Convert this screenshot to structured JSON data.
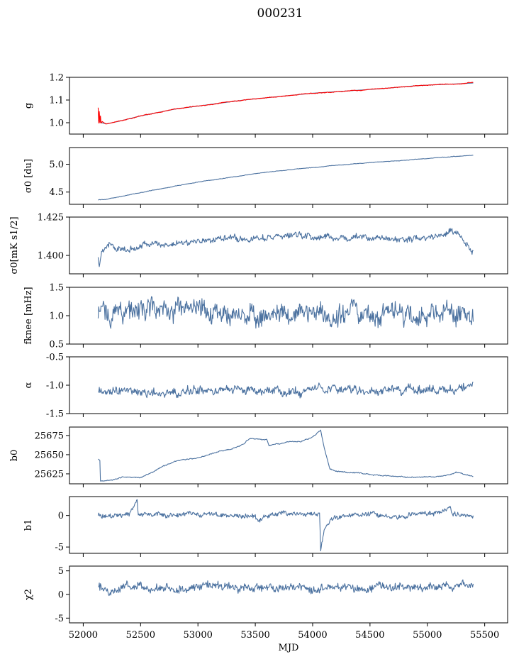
{
  "figure_title": "000231",
  "colors": {
    "series": "#4c72a0",
    "model": "#ff0000"
  },
  "chart_data": [
    {
      "type": "line",
      "ylabel": "g",
      "ylim": [
        0.95,
        1.2
      ],
      "yticks": [
        "1.0",
        "1.1",
        "1.2"
      ],
      "ytick_values": [
        1.0,
        1.1,
        1.2
      ],
      "series": [
        {
          "color": "#4c72a0",
          "points": [
            [
              52130,
              1.01
            ],
            [
              52160,
              1.0
            ],
            [
              52200,
              0.995
            ],
            [
              52300,
              1.005
            ],
            [
              52500,
              1.03
            ],
            [
              52800,
              1.06
            ],
            [
              53100,
              1.08
            ],
            [
              53400,
              1.1
            ],
            [
              53700,
              1.115
            ],
            [
              54000,
              1.13
            ],
            [
              54300,
              1.14
            ],
            [
              54600,
              1.15
            ],
            [
              54900,
              1.163
            ],
            [
              55100,
              1.168
            ],
            [
              55300,
              1.172
            ],
            [
              55400,
              1.175
            ]
          ]
        },
        {
          "color": "#ff0000",
          "points": [
            [
              52130,
              1.065
            ],
            [
              52135,
              1.0
            ],
            [
              52140,
              1.05
            ],
            [
              52145,
              1.0
            ],
            [
              52150,
              1.03
            ],
            [
              52155,
              1.0
            ],
            [
              52165,
              1.005
            ],
            [
              52200,
              0.995
            ],
            [
              52300,
              1.005
            ],
            [
              52500,
              1.03
            ],
            [
              52800,
              1.06
            ],
            [
              53100,
              1.08
            ],
            [
              53400,
              1.1
            ],
            [
              53700,
              1.115
            ],
            [
              54000,
              1.13
            ],
            [
              54300,
              1.14
            ],
            [
              54600,
              1.15
            ],
            [
              54900,
              1.163
            ],
            [
              55100,
              1.168
            ],
            [
              55300,
              1.172
            ],
            [
              55400,
              1.178
            ]
          ]
        }
      ]
    },
    {
      "type": "line",
      "ylabel": "σ0 [du]",
      "ylim": [
        4.28,
        5.3
      ],
      "yticks": [
        "4.5",
        "5.0"
      ],
      "ytick_values": [
        4.5,
        5.0
      ],
      "series": [
        {
          "color": "#4c72a0",
          "points": [
            [
              52130,
              4.36
            ],
            [
              52200,
              4.37
            ],
            [
              52400,
              4.45
            ],
            [
              52700,
              4.57
            ],
            [
              53000,
              4.68
            ],
            [
              53300,
              4.77
            ],
            [
              53600,
              4.86
            ],
            [
              53900,
              4.92
            ],
            [
              54200,
              4.98
            ],
            [
              54500,
              5.03
            ],
            [
              54800,
              5.07
            ],
            [
              55100,
              5.12
            ],
            [
              55400,
              5.16
            ]
          ]
        }
      ]
    },
    {
      "type": "line",
      "ylabel": "σ0[mK s1/2]",
      "ylim": [
        1.388,
        1.425
      ],
      "yticks": [
        "1.400",
        "1.425"
      ],
      "ytick_values": [
        1.4,
        1.425
      ],
      "series": [
        {
          "color": "#4c72a0",
          "points": [
            [
              52130,
              1.398
            ],
            [
              52140,
              1.393
            ],
            [
              52160,
              1.404
            ],
            [
              52200,
              1.407
            ],
            [
              52300,
              1.405
            ],
            [
              52400,
              1.402
            ],
            [
              52500,
              1.408
            ],
            [
              52700,
              1.407
            ],
            [
              52900,
              1.409
            ],
            [
              53100,
              1.41
            ],
            [
              53300,
              1.412
            ],
            [
              53500,
              1.411
            ],
            [
              53700,
              1.412
            ],
            [
              53900,
              1.413
            ],
            [
              54100,
              1.412
            ],
            [
              54300,
              1.411
            ],
            [
              54500,
              1.412
            ],
            [
              54700,
              1.41
            ],
            [
              54900,
              1.411
            ],
            [
              55100,
              1.413
            ],
            [
              55250,
              1.416
            ],
            [
              55350,
              1.406
            ],
            [
              55400,
              1.403
            ]
          ]
        }
      ]
    },
    {
      "type": "line",
      "ylabel": "fknee [mHz]",
      "ylim": [
        0.5,
        1.5
      ],
      "yticks": [
        "0.5",
        "1.0",
        "1.5"
      ],
      "ytick_values": [
        0.5,
        1.0,
        1.5
      ],
      "series": [
        {
          "color": "#4c72a0",
          "points": [
            [
              52130,
              1.05
            ],
            [
              52300,
              1.1
            ],
            [
              52600,
              1.08
            ],
            [
              52900,
              1.05
            ],
            [
              53200,
              1.07
            ],
            [
              53500,
              1.03
            ],
            [
              53800,
              1.05
            ],
            [
              54100,
              1.02
            ],
            [
              54400,
              1.06
            ],
            [
              54700,
              1.04
            ],
            [
              55000,
              1.05
            ],
            [
              55200,
              1.04
            ],
            [
              55400,
              1.02
            ]
          ]
        }
      ]
    },
    {
      "type": "line",
      "ylabel": "α",
      "ylim": [
        -1.5,
        -0.5
      ],
      "yticks": [
        "-1.5",
        "-1.0",
        "-0.5"
      ],
      "ytick_values": [
        -1.5,
        -1.0,
        -0.5
      ],
      "series": [
        {
          "color": "#4c72a0",
          "points": [
            [
              52130,
              -1.12
            ],
            [
              52400,
              -1.1
            ],
            [
              52700,
              -1.12
            ],
            [
              53000,
              -1.1
            ],
            [
              53300,
              -1.09
            ],
            [
              53600,
              -1.1
            ],
            [
              53900,
              -1.1
            ],
            [
              54200,
              -1.08
            ],
            [
              54500,
              -1.1
            ],
            [
              54800,
              -1.08
            ],
            [
              55100,
              -1.07
            ],
            [
              55400,
              -1.05
            ]
          ]
        }
      ]
    },
    {
      "type": "line",
      "ylabel": "b0",
      "ylim": [
        25612,
        25686
      ],
      "yticks": [
        "25625",
        "25650",
        "25675"
      ],
      "ytick_values": [
        25625,
        25650,
        25675
      ],
      "series": [
        {
          "color": "#4c72a0",
          "points": [
            [
              52130,
              25644
            ],
            [
              52145,
              25643
            ],
            [
              52150,
              25616
            ],
            [
              52250,
              25617
            ],
            [
              52350,
              25621
            ],
            [
              52500,
              25620
            ],
            [
              52600,
              25627
            ],
            [
              52700,
              25635
            ],
            [
              52800,
              25641
            ],
            [
              52900,
              25644
            ],
            [
              53000,
              25646
            ],
            [
              53100,
              25650
            ],
            [
              53200,
              25655
            ],
            [
              53300,
              25657
            ],
            [
              53400,
              25664
            ],
            [
              53450,
              25671
            ],
            [
              53600,
              25670
            ],
            [
              53620,
              25662
            ],
            [
              53700,
              25664
            ],
            [
              53800,
              25667
            ],
            [
              53900,
              25667
            ],
            [
              54000,
              25673
            ],
            [
              54070,
              25682
            ],
            [
              54100,
              25660
            ],
            [
              54150,
              25632
            ],
            [
              54200,
              25628
            ],
            [
              54400,
              25626
            ],
            [
              54600,
              25623
            ],
            [
              54800,
              25621
            ],
            [
              55100,
              25621
            ],
            [
              55200,
              25624
            ],
            [
              55250,
              25627
            ],
            [
              55300,
              25625
            ],
            [
              55400,
              25621
            ]
          ]
        }
      ]
    },
    {
      "type": "line",
      "ylabel": "b1",
      "ylim": [
        -6,
        3
      ],
      "yticks": [
        "-5",
        "0"
      ],
      "ytick_values": [
        -5,
        0
      ],
      "series": [
        {
          "color": "#4c72a0",
          "points": [
            [
              52130,
              0.1
            ],
            [
              52400,
              0.2
            ],
            [
              52470,
              2.5
            ],
            [
              52480,
              0.2
            ],
            [
              52700,
              0.1
            ],
            [
              53000,
              0.1
            ],
            [
              53300,
              0.0
            ],
            [
              53500,
              -0.2
            ],
            [
              53530,
              -1.0
            ],
            [
              53560,
              0.1
            ],
            [
              53800,
              0.2
            ],
            [
              54000,
              0.4
            ],
            [
              54060,
              0.3
            ],
            [
              54070,
              -5.5
            ],
            [
              54100,
              -2.5
            ],
            [
              54150,
              -0.8
            ],
            [
              54250,
              0.0
            ],
            [
              54500,
              0.1
            ],
            [
              54800,
              0.0
            ],
            [
              55000,
              0.1
            ],
            [
              55200,
              1.2
            ],
            [
              55220,
              0.1
            ],
            [
              55400,
              0.0
            ]
          ]
        }
      ]
    },
    {
      "type": "line",
      "ylabel": "χ2",
      "xlabel": "MJD",
      "ylim": [
        -6,
        6
      ],
      "yticks": [
        "-5",
        "0",
        "5"
      ],
      "ytick_values": [
        -5,
        0,
        5
      ],
      "series": [
        {
          "color": "#4c72a0",
          "points": [
            [
              52130,
              1.5
            ],
            [
              52300,
              1.4
            ],
            [
              52500,
              1.6
            ],
            [
              52700,
              1.3
            ],
            [
              52900,
              1.4
            ],
            [
              53100,
              1.5
            ],
            [
              53300,
              1.4
            ],
            [
              53500,
              1.5
            ],
            [
              53700,
              1.4
            ],
            [
              53900,
              1.5
            ],
            [
              54100,
              1.5
            ],
            [
              54300,
              1.6
            ],
            [
              54500,
              1.5
            ],
            [
              54700,
              1.6
            ],
            [
              54900,
              1.7
            ],
            [
              55100,
              1.8
            ],
            [
              55300,
              1.9
            ],
            [
              55400,
              2.0
            ]
          ]
        }
      ]
    }
  ],
  "shared_x": {
    "xlim": [
      51880,
      55700
    ],
    "xticks": [
      "52000",
      "52500",
      "53000",
      "53500",
      "54000",
      "54500",
      "55000",
      "55500"
    ],
    "xtick_values": [
      52000,
      52500,
      53000,
      53500,
      54000,
      54500,
      55000,
      55500
    ]
  }
}
